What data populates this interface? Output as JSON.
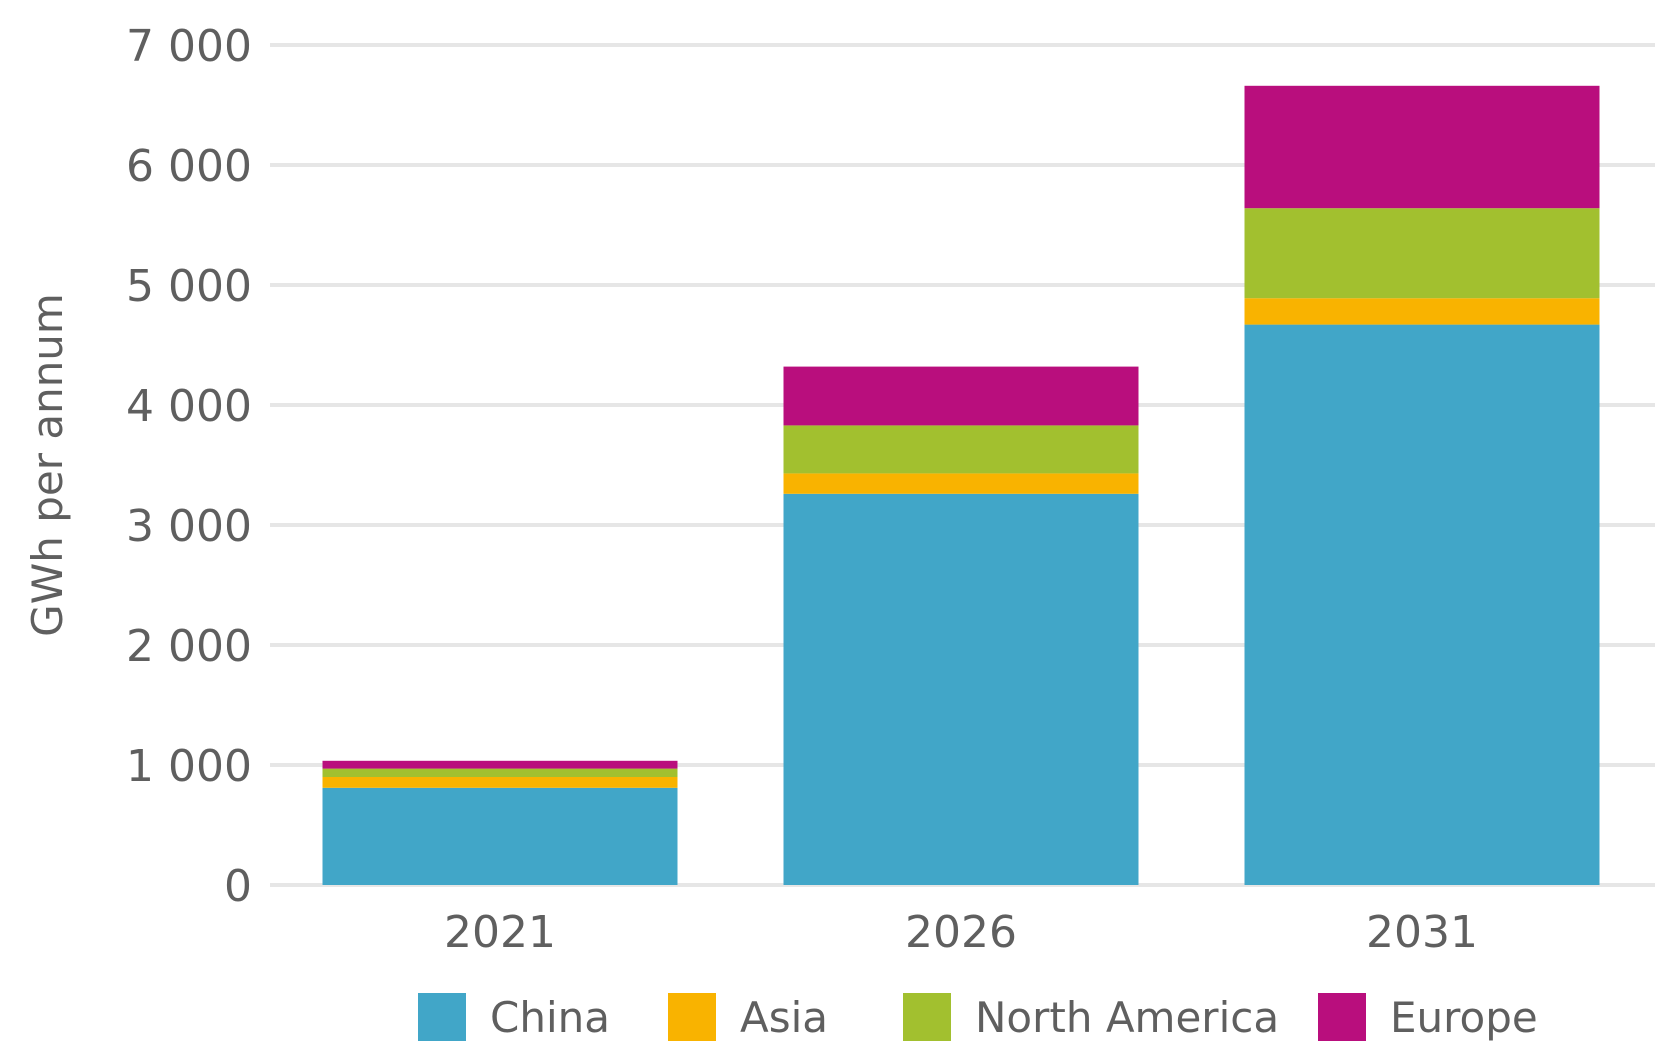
{
  "chart_data": {
    "type": "bar",
    "stacked": true,
    "categories": [
      "2021",
      "2026",
      "2031"
    ],
    "series": [
      {
        "name": "China",
        "color": "#41A6C8",
        "values": [
          810,
          3260,
          4670
        ]
      },
      {
        "name": "Asia",
        "color": "#F9B300",
        "values": [
          90,
          170,
          220
        ]
      },
      {
        "name": "North America",
        "color": "#A2C02F",
        "values": [
          70,
          400,
          750
        ]
      },
      {
        "name": "Europe",
        "color": "#B90E7D",
        "values": [
          65,
          490,
          1020
        ]
      }
    ],
    "title": "",
    "xlabel": "",
    "ylabel": "GWh  per annum",
    "ylim": [
      0,
      7000
    ],
    "yticks": [
      0,
      1000,
      2000,
      3000,
      4000,
      5000,
      6000,
      7000
    ],
    "ytick_labels": [
      "0",
      "1 000",
      "2 000",
      "3 000",
      "4 000",
      "5 000",
      "6 000",
      "7 000"
    ],
    "grid": true,
    "legend_position": "bottom"
  }
}
